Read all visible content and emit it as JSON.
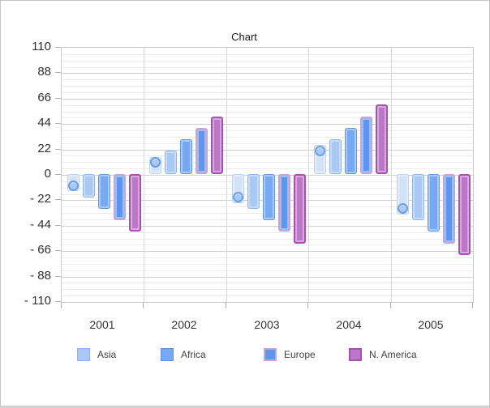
{
  "chart_data": {
    "type": "bar",
    "title": "Chart",
    "categories": [
      "2001",
      "2002",
      "2003",
      "2004",
      "2005"
    ],
    "series": [
      {
        "name": "",
        "in_legend": false,
        "style": "column-with-circle-marker",
        "values": [
          -10,
          10,
          -20,
          20,
          -30
        ],
        "fill": "#d4e2f8",
        "border": "#b9d0f4",
        "border_width": 1,
        "marker": {
          "shape": "circle",
          "fill": "#abc9f1",
          "ring": "#67a0e6"
        }
      },
      {
        "name": "Asia",
        "in_legend": true,
        "values": [
          -20,
          20,
          -30,
          30,
          -40
        ],
        "fill": "#a9c9f4",
        "border": "#8db4ef",
        "border_width": 1
      },
      {
        "name": "Africa",
        "in_legend": true,
        "values": [
          -30,
          30,
          -40,
          40,
          -50
        ],
        "fill": "#76a9f1",
        "border": "#5e95e8",
        "border_width": 1
      },
      {
        "name": "Europe",
        "in_legend": true,
        "values": [
          -40,
          40,
          -50,
          50,
          -60
        ],
        "fill": "#5e96ee",
        "border": "#c9a2d6",
        "border_width": 2
      },
      {
        "name": "N. America",
        "in_legend": true,
        "values": [
          -50,
          50,
          -60,
          60,
          -70
        ],
        "fill": "#bd77c8",
        "border": "#a751ae",
        "border_width": 2
      }
    ],
    "ylim": [
      -110,
      110
    ],
    "yticks": [
      110,
      88,
      66,
      44,
      22,
      0,
      -22,
      -44,
      -66,
      -88,
      -110
    ],
    "ytick_labels": [
      "110",
      "88",
      "66",
      "44",
      "22",
      "0",
      "- 22",
      "- 44",
      "- 66",
      "- 88",
      "- 110"
    ],
    "minor_gridline_step": 5.5,
    "major_gridline_step": 22,
    "grid": true,
    "legend_position": "bottom",
    "legend": [
      "Asia",
      "Africa",
      "Europe",
      "N. America"
    ]
  }
}
